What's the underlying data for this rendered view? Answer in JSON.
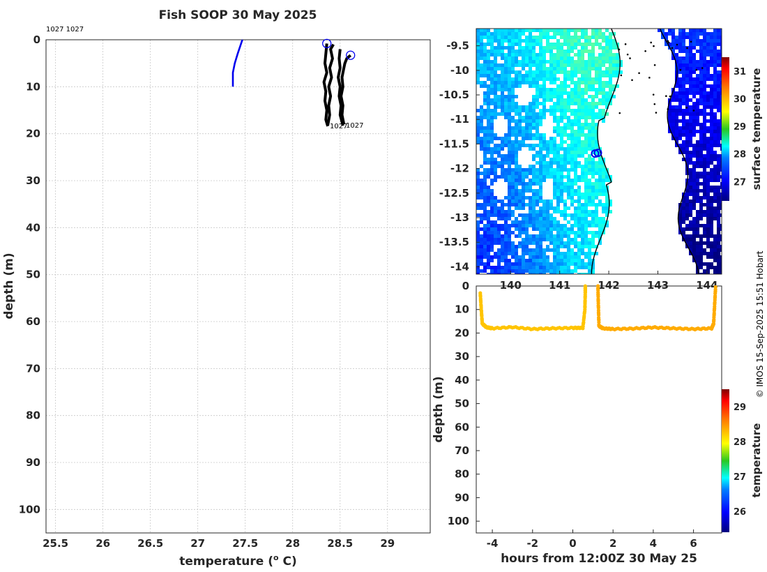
{
  "title": "Fish SOOP 30 May 2025",
  "credit": "© IMOS 15-Sep-2025 15:51 Hobart",
  "chart_data": [
    {
      "type": "line",
      "name": "temperature-profile",
      "xlabel": "temperature (",
      "xlabel_unit": "o",
      "xlabel_tail": " C)",
      "ylabel": "depth (m)",
      "xlim": [
        25.4,
        29.45
      ],
      "ylim": [
        105,
        0
      ],
      "xticks": [
        "25.5",
        "26",
        "26.5",
        "27",
        "27.5",
        "28",
        "28.5",
        "29"
      ],
      "xtick_values": [
        25.5,
        26,
        26.5,
        27,
        27.5,
        28,
        28.5,
        29
      ],
      "yticks": [
        "0",
        "10",
        "20",
        "30",
        "40",
        "50",
        "60",
        "70",
        "80",
        "90",
        "100"
      ],
      "ytick_values": [
        0,
        10,
        20,
        30,
        40,
        50,
        60,
        70,
        80,
        90,
        100
      ],
      "annotations": {
        "top_left": "1027 1027",
        "profile_a": "1027",
        "profile_b": "1027"
      },
      "series": [
        {
          "name": "blue-profile",
          "color": "#0000ee",
          "x": [
            27.37,
            27.37,
            27.39,
            27.42,
            27.47
          ],
          "y": [
            10,
            7,
            5,
            3,
            0
          ]
        },
        {
          "name": "cast-1-down",
          "color": "#000000",
          "x": [
            28.36,
            28.35,
            28.34,
            28.36,
            28.33,
            28.35,
            28.34,
            28.36,
            28.35,
            28.37
          ],
          "y": [
            0.8,
            3,
            5,
            7,
            9,
            11,
            13,
            15,
            17,
            18.4
          ]
        },
        {
          "name": "cast-1-up",
          "color": "#000000",
          "x": [
            28.37,
            28.39,
            28.38,
            28.4,
            28.38,
            28.41,
            28.39,
            28.42,
            28.4,
            28.43
          ],
          "y": [
            18.2,
            16,
            14,
            12,
            10,
            8,
            6,
            4,
            2,
            1
          ]
        },
        {
          "name": "cast-2-down",
          "color": "#000000",
          "x": [
            28.5,
            28.49,
            28.5,
            28.48,
            28.5,
            28.49,
            28.51,
            28.5,
            28.52,
            28.53
          ],
          "y": [
            2,
            4,
            6,
            8,
            10,
            12,
            14,
            16,
            17.5,
            18.3
          ]
        },
        {
          "name": "cast-2-up",
          "color": "#000000",
          "x": [
            28.54,
            28.52,
            28.53,
            28.51,
            28.53,
            28.52,
            28.54,
            28.55,
            28.57,
            28.61
          ],
          "y": [
            18,
            16,
            14,
            12,
            10,
            8,
            6,
            5,
            4,
            3.3
          ]
        }
      ],
      "markers": [
        {
          "x": 28.36,
          "y": 0.8
        },
        {
          "x": 28.61,
          "y": 3.3
        }
      ]
    },
    {
      "type": "heatmap",
      "name": "surface-temperature-map",
      "xlim": [
        139.3,
        144.3
      ],
      "ylim": [
        -14.15,
        -9.15
      ],
      "xticks": [
        "140",
        "141",
        "142",
        "143",
        "144"
      ],
      "xtick_values": [
        140,
        141,
        142,
        143,
        144
      ],
      "yticks": [
        "-9.5",
        "-10",
        "-10.5",
        "-11",
        "-11.5",
        "-12",
        "-12.5",
        "-13",
        "-13.5",
        "-14"
      ],
      "ytick_values": [
        -9.5,
        -10,
        -10.5,
        -11,
        -11.5,
        -12,
        -12.5,
        -13,
        -13.5,
        -14
      ],
      "colorbar": {
        "label": "surface temperature",
        "min": 26.3,
        "max": 31.5,
        "ticks": [
          "27",
          "28",
          "29",
          "30",
          "31"
        ],
        "tick_values": [
          27,
          28,
          29,
          30,
          31
        ]
      },
      "position_marker": {
        "lon": 141.75,
        "lat": -11.68
      }
    },
    {
      "type": "scatter",
      "name": "depth-time-series",
      "xlabel": "hours from 12:00Z 30 May 25",
      "ylabel": "depth (m)",
      "xlim": [
        -4.8,
        7.4
      ],
      "ylim": [
        105,
        0
      ],
      "xticks": [
        "-4",
        "-2",
        "0",
        "2",
        "4",
        "6"
      ],
      "xtick_values": [
        -4,
        -2,
        0,
        2,
        4,
        6
      ],
      "yticks": [
        "0",
        "10",
        "20",
        "30",
        "40",
        "50",
        "60",
        "70",
        "80",
        "90",
        "100"
      ],
      "ytick_values": [
        0,
        10,
        20,
        30,
        40,
        50,
        60,
        70,
        80,
        90,
        100
      ],
      "colorbar": {
        "label": "temperature",
        "min": 25.4,
        "max": 29.5,
        "ticks": [
          "26",
          "27",
          "28",
          "29"
        ],
        "tick_values": [
          26,
          27,
          28,
          29
        ]
      },
      "segments": [
        {
          "name": "segment-1",
          "temperature": 28.2,
          "x": [
            -4.6,
            -4.55,
            -4.5,
            -4.3,
            -4,
            -3,
            -2,
            -1,
            0,
            0.5,
            0.6,
            0.62,
            0.62
          ],
          "y": [
            3,
            10,
            16,
            17.5,
            18,
            17.5,
            18.3,
            18,
            17.8,
            17.8,
            10,
            3,
            0
          ]
        },
        {
          "name": "segment-2",
          "temperature": 28.3,
          "x": [
            1.25,
            1.27,
            1.3,
            1.5,
            2,
            3,
            4,
            5,
            6,
            6.9,
            7,
            7.05,
            7.1
          ],
          "y": [
            0,
            8,
            17,
            18,
            18.3,
            18.1,
            17.6,
            18,
            18.3,
            18,
            16,
            8,
            0
          ]
        }
      ]
    }
  ]
}
